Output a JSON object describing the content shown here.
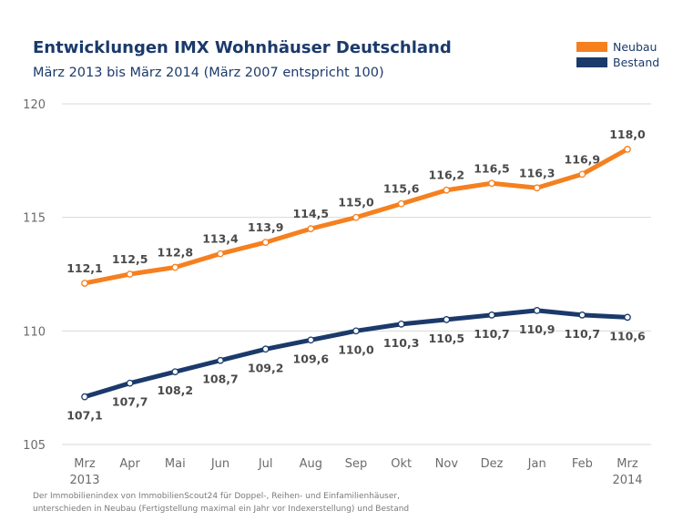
{
  "chart_data": {
    "type": "line",
    "title": "Entwicklungen IMX Wohnhäuser Deutschland",
    "subtitle": "März 2013 bis März 2014 (März 2007 entspricht 100)",
    "categories": [
      "Mrz",
      "Apr",
      "Mai",
      "Jun",
      "Jul",
      "Aug",
      "Sep",
      "Okt",
      "Nov",
      "Dez",
      "Jan",
      "Feb",
      "Mrz"
    ],
    "category_sublabels": [
      "2013",
      "",
      "",
      "",
      "",
      "",
      "",
      "",
      "",
      "",
      "",
      "",
      "2014"
    ],
    "series": [
      {
        "name": "Neubau",
        "color": "#f5801f",
        "values": [
          112.1,
          112.5,
          112.8,
          113.4,
          113.9,
          114.5,
          115.0,
          115.6,
          116.2,
          116.5,
          116.3,
          116.9,
          118.0
        ],
        "labels": [
          "112,1",
          "112,5",
          "112,8",
          "113,4",
          "113,9",
          "114,5",
          "115,0",
          "115,6",
          "116,2",
          "116,5",
          "116,3",
          "116,9",
          "118,0"
        ]
      },
      {
        "name": "Bestand",
        "color": "#1b3a6b",
        "values": [
          107.1,
          107.7,
          108.2,
          108.7,
          109.2,
          109.6,
          110.0,
          110.3,
          110.5,
          110.7,
          110.9,
          110.7,
          110.6
        ],
        "labels": [
          "107,1",
          "107,7",
          "108,2",
          "108,7",
          "109,2",
          "109,6",
          "110,0",
          "110,3",
          "110,5",
          "110,7",
          "110,9",
          "110,7",
          "110,6"
        ]
      }
    ],
    "ylim": [
      105,
      120
    ],
    "yticks": [
      105,
      110,
      115,
      120
    ],
    "ytick_labels": [
      "105",
      "110",
      "115",
      "120"
    ],
    "grid": true,
    "legend_position": "top-right"
  },
  "footnote": {
    "line1": "Der Immobilienindex von ImmobilienScout24 für Doppel-, Reihen- und Einfamilienhäuser,",
    "line2": "unterschieden in Neubau (Fertigstellung maximal ein Jahr vor Indexerstellung) und Bestand"
  }
}
